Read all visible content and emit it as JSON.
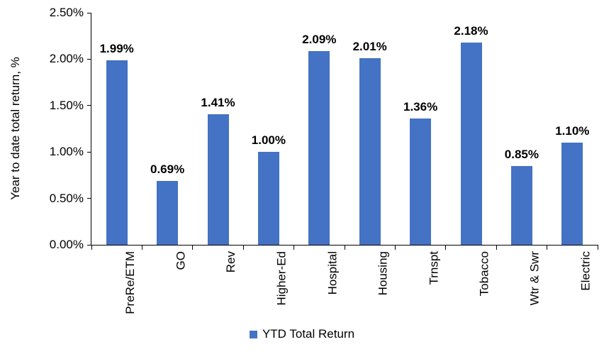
{
  "chart_data": {
    "type": "bar",
    "categories": [
      "PreRe/ETM",
      "GO",
      "Rev",
      "Higher-Ed",
      "Hospital",
      "Housing",
      "Trnspt",
      "Tobacco",
      "Wtr & Swr",
      "Electric"
    ],
    "values": [
      1.99,
      0.69,
      1.41,
      1.0,
      2.09,
      2.01,
      1.36,
      2.18,
      0.85,
      1.1
    ],
    "labels": [
      "1.99%",
      "0.69%",
      "1.41%",
      "1.00%",
      "2.09%",
      "2.01%",
      "1.36%",
      "2.18%",
      "0.85%",
      "1.10%"
    ],
    "title": "",
    "xlabel": "",
    "ylabel": "Year to date total return, %",
    "ylim": [
      0,
      2.5
    ],
    "yticks": [
      "0.00%",
      "0.50%",
      "1.00%",
      "1.50%",
      "2.00%",
      "2.50%"
    ],
    "legend": [
      "YTD Total Return"
    ],
    "legend_position": "bottom",
    "grid": false,
    "bar_color": "#4472C4",
    "axis_color": "#000000"
  }
}
